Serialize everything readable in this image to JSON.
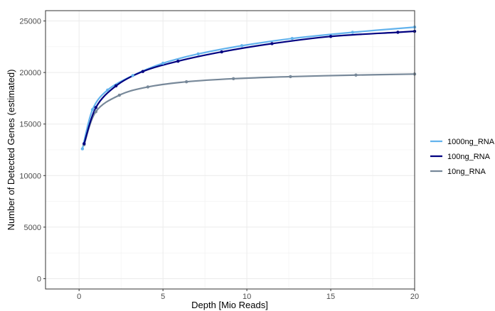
{
  "chart_data": {
    "type": "line",
    "xlabel": "Depth [Mio Reads]",
    "ylabel": "Number of Detected Genes (estimated)",
    "xlim": [
      -2,
      20
    ],
    "ylim": [
      -1000,
      26000
    ],
    "x_ticks": [
      0,
      5,
      10,
      15,
      20
    ],
    "x_tick_labels": [
      "0",
      "5",
      "10",
      "15",
      "20"
    ],
    "y_ticks": [
      0,
      5000,
      10000,
      15000,
      20000,
      25000
    ],
    "y_tick_labels": [
      "0",
      "5000",
      "10000",
      "15000",
      "20000",
      "25000"
    ],
    "grid": true,
    "legend_position": "right",
    "series": [
      {
        "name": "1000ng_RNA",
        "color": "#63b3ed",
        "x": [
          0.2,
          0.8,
          1.7,
          3.2,
          5.0,
          7.1,
          9.7,
          12.7,
          16.3,
          20.0
        ],
        "y": [
          12600,
          16400,
          18300,
          19700,
          20900,
          21800,
          22600,
          23300,
          23900,
          24400
        ]
      },
      {
        "name": "100ng_RNA",
        "color": "#000080",
        "x": [
          0.3,
          1.0,
          2.2,
          3.8,
          5.9,
          8.5,
          11.5,
          15.0,
          19.0,
          20.0
        ],
        "y": [
          13100,
          16600,
          18700,
          20100,
          21100,
          22000,
          22800,
          23500,
          23900,
          24000
        ]
      },
      {
        "name": "10ng_RNA",
        "color": "#778899",
        "x": [
          0.3,
          1.0,
          2.4,
          4.1,
          6.4,
          9.2,
          12.6,
          16.5,
          20.0
        ],
        "y": [
          13000,
          16200,
          17800,
          18600,
          19100,
          19400,
          19600,
          19750,
          19850
        ]
      }
    ]
  }
}
